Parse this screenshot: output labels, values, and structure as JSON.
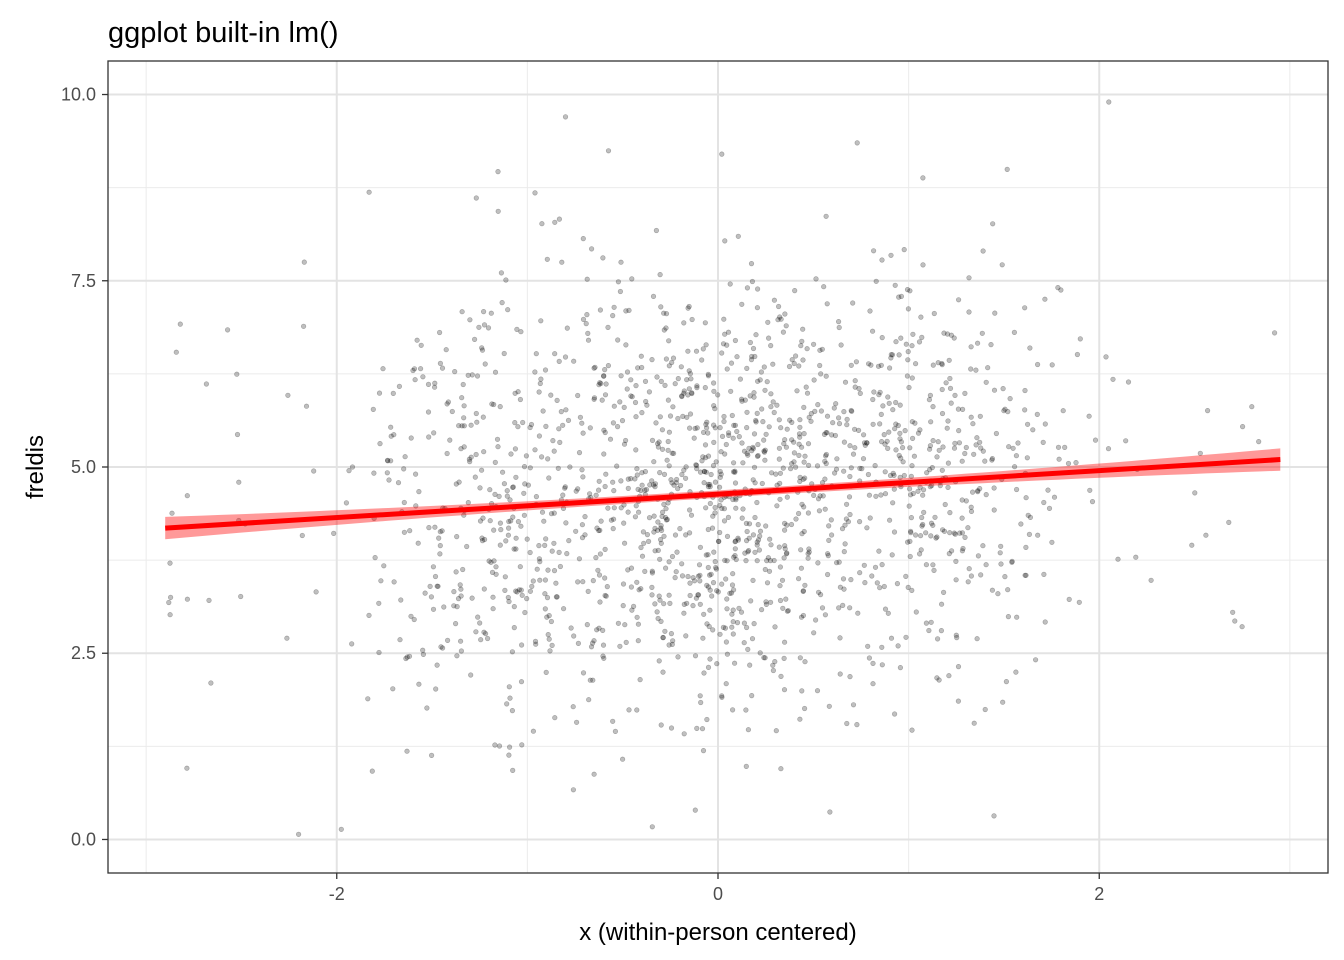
{
  "chart_data": {
    "type": "scatter",
    "title": "ggplot built-in lm()",
    "xlabel": "x (within-person centered)",
    "ylabel": "freldis",
    "xlim": [
      -3.2,
      3.2
    ],
    "ylim": [
      -0.45,
      10.45
    ],
    "x_ticks": [
      {
        "value": -2,
        "label": "-2"
      },
      {
        "value": 0,
        "label": "0"
      },
      {
        "value": 2,
        "label": "2"
      }
    ],
    "y_ticks": [
      {
        "value": 0,
        "label": "0.0"
      },
      {
        "value": 2.5,
        "label": "2.5"
      },
      {
        "value": 5,
        "label": "5.0"
      },
      {
        "value": 7.5,
        "label": "7.5"
      },
      {
        "value": 10,
        "label": "10.0"
      }
    ],
    "x_minor": [
      -3,
      -1,
      1,
      3
    ],
    "y_minor": [
      1.25,
      3.75,
      6.25,
      8.75
    ],
    "grid": true,
    "theme": "bw",
    "point_color": "#000000",
    "point_alpha": 0.25,
    "approx_point_count": 1700,
    "notable_points": [
      {
        "x": -2.2,
        "y": 0.07
      },
      {
        "x": 2.05,
        "y": 9.9
      },
      {
        "x": -0.8,
        "y": 9.7
      },
      {
        "x": 0.73,
        "y": 9.35
      },
      {
        "x": 0.02,
        "y": 9.2
      },
      {
        "x": -0.96,
        "y": 8.68
      },
      {
        "x": -2.17,
        "y": 7.75
      },
      {
        "x": -2.66,
        "y": 2.1
      },
      {
        "x": 2.92,
        "y": 6.8
      },
      {
        "x": 2.7,
        "y": 3.05
      }
    ],
    "fit": {
      "method": "lm",
      "color": "#ff0000",
      "ribbon_color": "#ff0000",
      "ribbon_alpha": 0.4,
      "x_range": [
        -2.9,
        2.95
      ],
      "y_at_x_min": 4.18,
      "y_at_x_max": 5.1,
      "ci_half_width_at_ends": 0.15,
      "ci_half_width_at_center": 0.05
    }
  }
}
